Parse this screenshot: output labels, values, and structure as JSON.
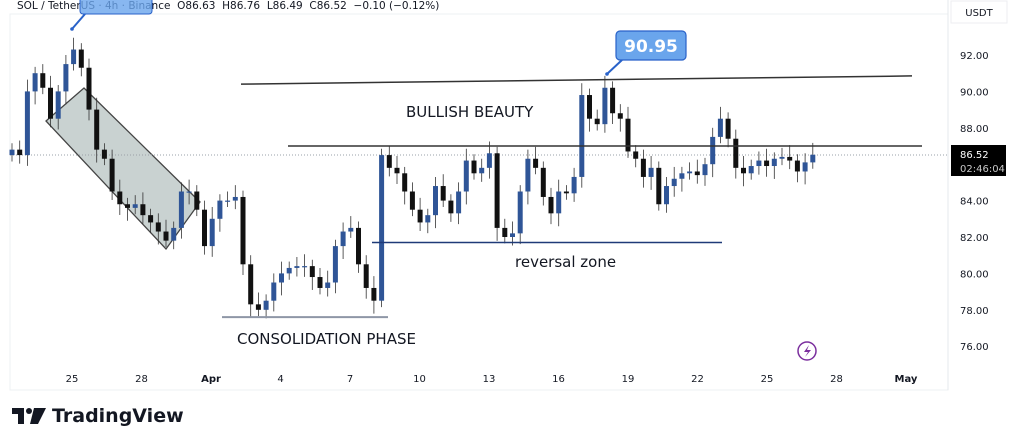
{
  "header": {
    "symbol": "SOL / TetherUS · 4h · Binance",
    "open": "O86.63",
    "high": "H86.76",
    "low": "L86.49",
    "close": "C86.52",
    "change": "−0.10 (−0.12%)"
  },
  "currency_label": "USDT",
  "last_price": {
    "value": "86.52",
    "countdown": "02:46:04"
  },
  "annotations": {
    "bullish": "BULLISH BEAUTY",
    "reversal": "reversal zone",
    "consolidation": "CONSOLIDATION PHASE",
    "peak_callout": "90.95"
  },
  "branding": {
    "name": "TradingView"
  },
  "colors": {
    "up": "#2f5597",
    "down": "#111111",
    "callout_fill": "#6aa5ec",
    "callout_border": "#2962c9",
    "channel_fill": "#c9d2d1",
    "event_icon": "#7b2f9e"
  },
  "icons": {
    "event": "lightning-icon",
    "logo": "tradingview-logo-icon"
  },
  "chart_data": {
    "type": "candlestick",
    "title": "",
    "ylim": [
      74.5,
      94
    ],
    "y_ticks": [
      "92.00",
      "90.00",
      "88.00",
      "84.00",
      "82.00",
      "80.00",
      "78.00",
      "76.00"
    ],
    "x_ticks": [
      "25",
      "28",
      "Apr",
      "4",
      "7",
      "10",
      "13",
      "16",
      "19",
      "22",
      "25",
      "28",
      "May"
    ],
    "grid": false,
    "closes": [
      86.8,
      86.5,
      90,
      91,
      90.2,
      88.5,
      90,
      91.5,
      92.3,
      91.3,
      89,
      86.8,
      86.3,
      84.5,
      83.8,
      83.6,
      83.8,
      83.2,
      82.8,
      82.3,
      81.8,
      82.5,
      84.5,
      84.5,
      83.5,
      81.5,
      83,
      84,
      84,
      84.2,
      80.5,
      78.3,
      78,
      78.5,
      79.5,
      80,
      80.3,
      80.4,
      80.4,
      79.8,
      79.2,
      79.5,
      81.5,
      82.3,
      82.5,
      80.5,
      79.2,
      78.5,
      86.5,
      85.8,
      85.5,
      84.5,
      83.5,
      82.8,
      83.2,
      84.8,
      84,
      83.3,
      84.5,
      86.2,
      85.5,
      85.8,
      86.6,
      82.5,
      82,
      82.2,
      84.5,
      86.3,
      85.8,
      84.2,
      83.3,
      84.5,
      84.4,
      85.3,
      89.8,
      88.5,
      88.2,
      90.2,
      88.8,
      88.5,
      86.7,
      86.3,
      85.3,
      85.8,
      83.8,
      84.8,
      85.2,
      85.5,
      85.6,
      85.4,
      86,
      87.5,
      88.5,
      87.4,
      85.8,
      85.5,
      85.9,
      86.2,
      85.9,
      86.3,
      86.4,
      86.2,
      85.6,
      86.1,
      86.52
    ],
    "lines": [
      {
        "name": "resistance-top",
        "from": 90.4,
        "to": 90.85
      },
      {
        "name": "resistance-mid",
        "level": 87
      },
      {
        "name": "reversal-zone",
        "level": 81.7
      },
      {
        "name": "consolidation-base",
        "level": 77.6
      }
    ]
  }
}
